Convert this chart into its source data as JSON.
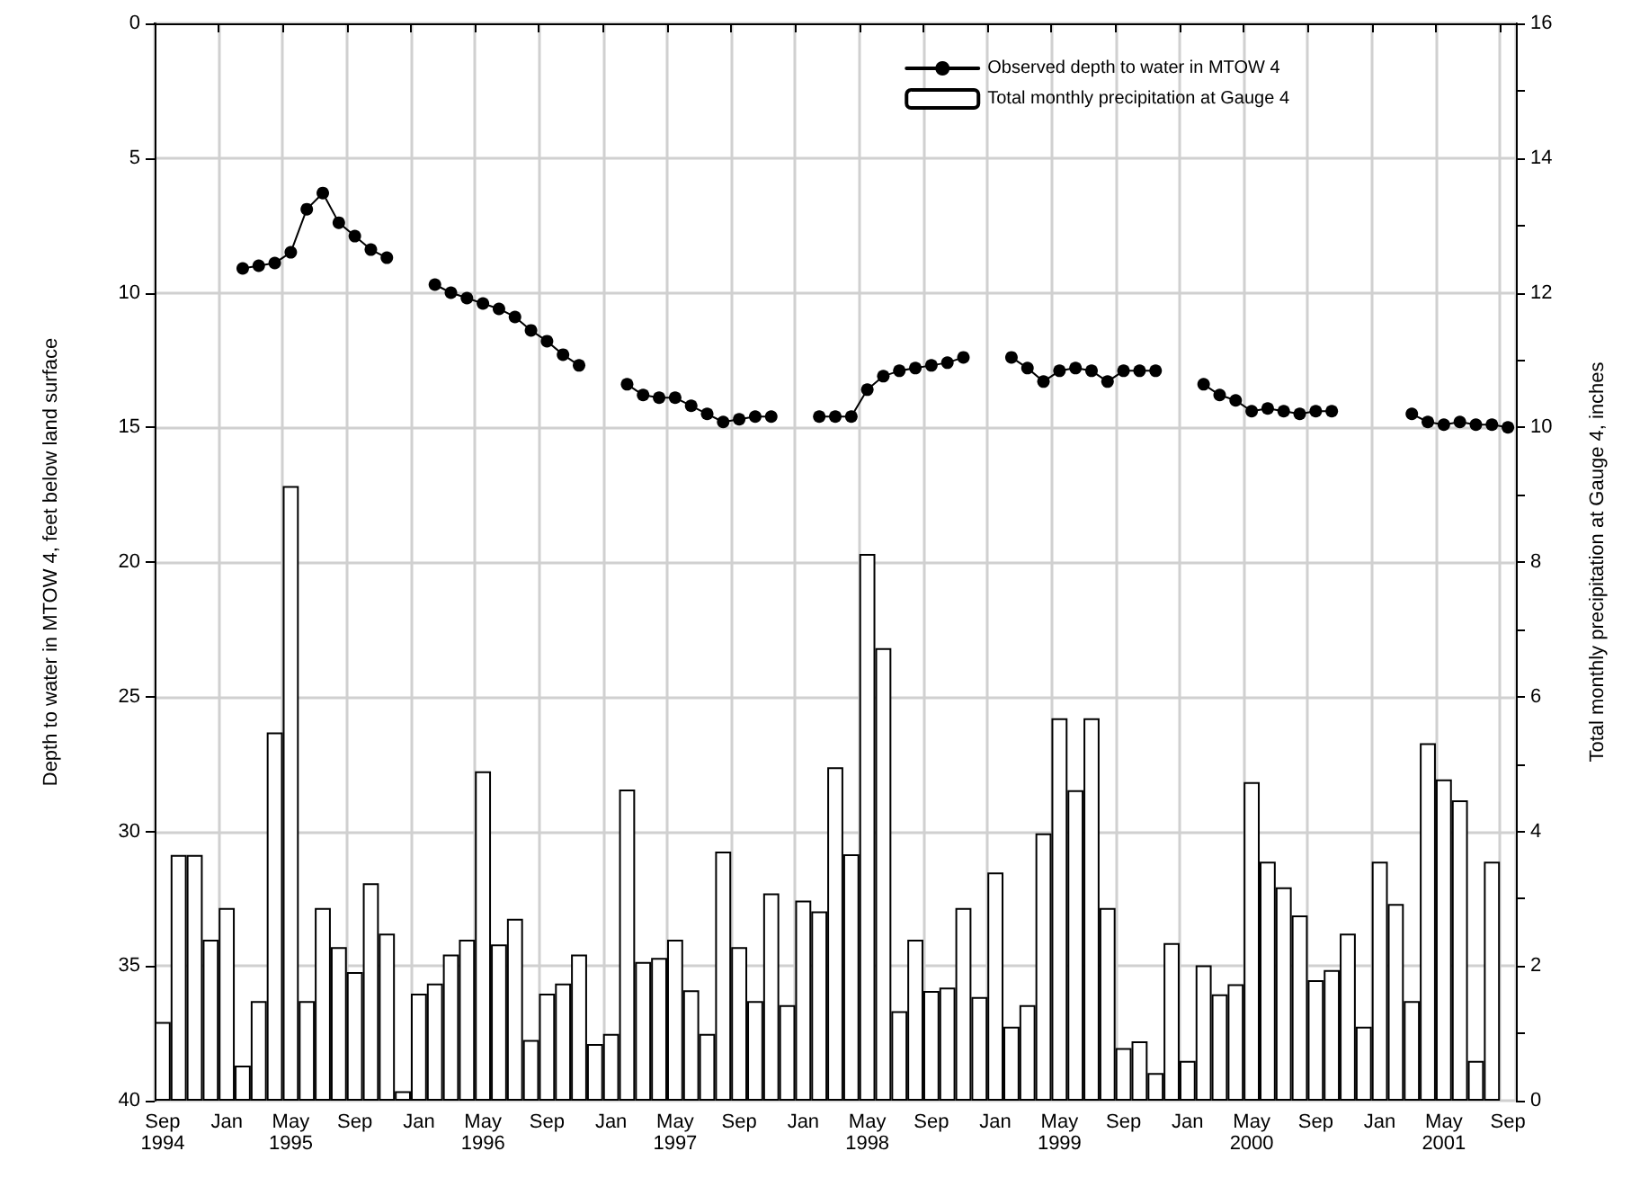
{
  "chart_data": {
    "type": "bar",
    "categories": [
      "Sep\n1994",
      null,
      null,
      null,
      "Jan",
      null,
      null,
      null,
      "May\n1995",
      null,
      null,
      null,
      "Sep",
      null,
      null,
      null,
      "Jan",
      null,
      null,
      null,
      "May\n1996",
      null,
      null,
      null,
      "Sep",
      null,
      null,
      null,
      "Jan",
      null,
      null,
      null,
      "May\n1997",
      null,
      null,
      null,
      "Sep",
      null,
      null,
      null,
      "Jan",
      null,
      null,
      null,
      "May\n1998",
      null,
      null,
      null,
      "Sep",
      null,
      null,
      null,
      "Jan",
      null,
      null,
      null,
      "May\n1999",
      null,
      null,
      null,
      "Sep",
      null,
      null,
      null,
      "Jan",
      null,
      null,
      null,
      "May\n2000",
      null,
      null,
      null,
      "Sep",
      null,
      null,
      null,
      "Jan",
      null,
      null,
      null,
      "May\n2001",
      null,
      null,
      null,
      "Sep"
    ],
    "series": [
      {
        "name": "Observed depth to water in MTOW 4",
        "type": "line",
        "color": "#000000",
        "values": [
          null,
          null,
          null,
          null,
          null,
          9.1,
          9.0,
          8.9,
          8.5,
          6.9,
          6.3,
          7.4,
          7.9,
          8.4,
          8.7,
          null,
          null,
          9.7,
          10.0,
          10.2,
          10.4,
          10.6,
          10.9,
          11.4,
          11.8,
          12.3,
          12.7,
          null,
          null,
          13.4,
          13.8,
          13.9,
          13.9,
          14.2,
          14.5,
          14.8,
          14.7,
          14.6,
          14.6,
          null,
          null,
          14.6,
          14.6,
          14.6,
          13.6,
          13.1,
          12.9,
          12.8,
          12.7,
          12.6,
          12.4,
          null,
          null,
          12.4,
          12.8,
          13.3,
          12.9,
          12.8,
          12.9,
          13.3,
          12.9,
          12.9,
          12.9,
          null,
          null,
          13.4,
          13.8,
          14.0,
          14.4,
          14.3,
          14.4,
          14.5,
          14.4,
          14.4,
          null,
          null,
          null,
          null,
          14.5,
          14.8,
          14.9,
          14.8,
          14.9,
          14.9,
          15.0
        ]
      },
      {
        "name": "Total monthly precipitation at Gauge 4",
        "axis": "y2",
        "color": "#ffffff",
        "values": [
          1.17,
          3.65,
          3.65,
          2.39,
          2.86,
          0.52,
          1.48,
          5.47,
          9.13,
          1.48,
          2.86,
          2.28,
          1.91,
          3.23,
          2.48,
          0.14,
          1.59,
          1.74,
          2.17,
          2.39,
          4.89,
          2.32,
          2.7,
          0.9,
          1.59,
          1.74,
          2.17,
          0.84,
          0.99,
          4.62,
          2.06,
          2.12,
          2.39,
          1.64,
          0.99,
          3.7,
          2.28,
          1.48,
          3.08,
          1.42,
          2.97,
          2.81,
          4.95,
          3.66,
          8.12,
          6.72,
          1.33,
          2.39,
          1.63,
          1.68,
          2.86,
          1.54,
          3.39,
          1.1,
          1.42,
          3.97,
          5.68,
          4.61,
          5.68,
          2.86,
          0.78,
          0.88,
          0.41,
          2.34,
          0.59,
          2.01,
          1.58,
          1.73,
          4.73,
          3.55,
          3.17,
          2.75,
          1.79,
          1.94,
          2.48,
          1.1,
          3.55,
          2.92,
          1.48,
          5.31,
          4.77,
          4.46,
          0.59,
          3.55,
          null
        ]
      }
    ],
    "ylabel": "Depth to water in MTOW 4, feet below land surface",
    "y2label": "Total monthly precipitation at Gauge 4, inches",
    "ylim": [
      40,
      0
    ],
    "yticks": [
      0,
      5,
      10,
      15,
      20,
      25,
      30,
      35,
      40
    ],
    "y2lim": [
      0,
      16
    ],
    "y2ticks": [
      0,
      {
        "value": 1,
        "label": null
      },
      2,
      {
        "value": 3,
        "label": null
      },
      4,
      {
        "value": 5,
        "label": null
      },
      6,
      {
        "value": 7,
        "label": null
      },
      8,
      {
        "value": 9,
        "label": null
      },
      10,
      {
        "value": 11,
        "label": null
      },
      12,
      {
        "value": 13,
        "label": null
      },
      14,
      {
        "value": 15,
        "label": null
      },
      16
    ],
    "grid": true,
    "legend": "top right",
    "marker": "circle"
  }
}
